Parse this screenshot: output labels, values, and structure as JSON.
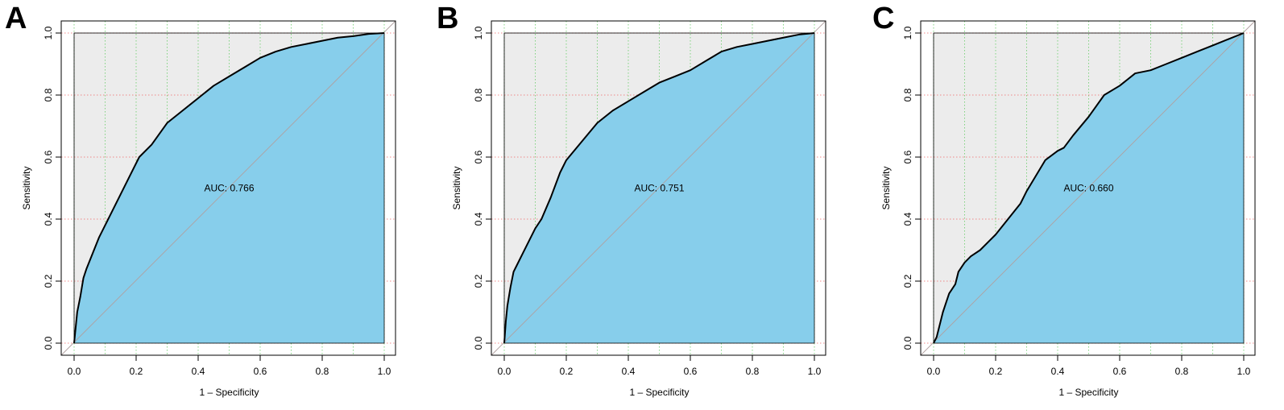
{
  "colors": {
    "background_area": "#ececec",
    "auc_fill": "#87ceeb",
    "curve": "#000000",
    "diagonal": "#b0a0a0",
    "grid_x": "#66cc66",
    "grid_y": "#ee6666"
  },
  "chart_data": [
    {
      "panel": "A",
      "type": "line",
      "xlabel": "1 – Specificity",
      "ylabel": "Sensitivity",
      "auc_label": "AUC: 0.766",
      "xlim": [
        0,
        1
      ],
      "ylim": [
        0,
        1
      ],
      "xticks": [
        "0.0",
        "0.2",
        "0.4",
        "0.6",
        "0.8",
        "1.0"
      ],
      "yticks": [
        "0.0",
        "0.2",
        "0.4",
        "0.6",
        "0.8",
        "1.0"
      ],
      "grid": true,
      "x": [
        0,
        0.005,
        0.01,
        0.02,
        0.03,
        0.04,
        0.06,
        0.08,
        0.1,
        0.12,
        0.15,
        0.18,
        0.21,
        0.25,
        0.3,
        0.35,
        0.4,
        0.45,
        0.5,
        0.55,
        0.6,
        0.65,
        0.7,
        0.75,
        0.8,
        0.85,
        0.9,
        0.95,
        1.0
      ],
      "y": [
        0,
        0.05,
        0.1,
        0.15,
        0.21,
        0.24,
        0.29,
        0.34,
        0.38,
        0.42,
        0.48,
        0.54,
        0.6,
        0.64,
        0.71,
        0.75,
        0.79,
        0.83,
        0.86,
        0.89,
        0.92,
        0.94,
        0.955,
        0.965,
        0.975,
        0.985,
        0.99,
        0.997,
        1.0
      ]
    },
    {
      "panel": "B",
      "type": "line",
      "xlabel": "1 – Specificity",
      "ylabel": "Sensitivity",
      "auc_label": "AUC: 0.751",
      "xlim": [
        0,
        1
      ],
      "ylim": [
        0,
        1
      ],
      "xticks": [
        "0.0",
        "0.2",
        "0.4",
        "0.6",
        "0.8",
        "1.0"
      ],
      "yticks": [
        "0.0",
        "0.2",
        "0.4",
        "0.6",
        "0.8",
        "1.0"
      ],
      "grid": true,
      "x": [
        0,
        0.005,
        0.01,
        0.02,
        0.03,
        0.04,
        0.06,
        0.08,
        0.1,
        0.12,
        0.15,
        0.18,
        0.2,
        0.25,
        0.3,
        0.35,
        0.4,
        0.45,
        0.5,
        0.55,
        0.6,
        0.65,
        0.7,
        0.75,
        0.8,
        0.85,
        0.9,
        0.95,
        1.0
      ],
      "y": [
        0,
        0.07,
        0.12,
        0.18,
        0.23,
        0.25,
        0.29,
        0.33,
        0.37,
        0.4,
        0.47,
        0.55,
        0.59,
        0.65,
        0.71,
        0.75,
        0.78,
        0.81,
        0.84,
        0.86,
        0.88,
        0.91,
        0.94,
        0.955,
        0.965,
        0.975,
        0.985,
        0.995,
        1.0
      ]
    },
    {
      "panel": "C",
      "type": "line",
      "xlabel": "1 – Specificity",
      "ylabel": "Sensitivity",
      "auc_label": "AUC: 0.660",
      "xlim": [
        0,
        1
      ],
      "ylim": [
        0,
        1
      ],
      "xticks": [
        "0.0",
        "0.2",
        "0.4",
        "0.6",
        "0.8",
        "1.0"
      ],
      "yticks": [
        "0.0",
        "0.2",
        "0.4",
        "0.6",
        "0.8",
        "1.0"
      ],
      "grid": true,
      "x": [
        0,
        0.01,
        0.02,
        0.03,
        0.04,
        0.05,
        0.07,
        0.08,
        0.1,
        0.12,
        0.15,
        0.18,
        0.2,
        0.24,
        0.28,
        0.3,
        0.33,
        0.36,
        0.4,
        0.42,
        0.45,
        0.5,
        0.55,
        0.6,
        0.65,
        0.7,
        0.75,
        0.8,
        0.85,
        0.9,
        0.95,
        1.0
      ],
      "y": [
        0,
        0.02,
        0.06,
        0.1,
        0.13,
        0.16,
        0.19,
        0.23,
        0.26,
        0.28,
        0.3,
        0.33,
        0.35,
        0.4,
        0.45,
        0.49,
        0.54,
        0.59,
        0.62,
        0.63,
        0.67,
        0.73,
        0.8,
        0.83,
        0.87,
        0.88,
        0.9,
        0.92,
        0.94,
        0.96,
        0.98,
        1.0
      ]
    }
  ]
}
